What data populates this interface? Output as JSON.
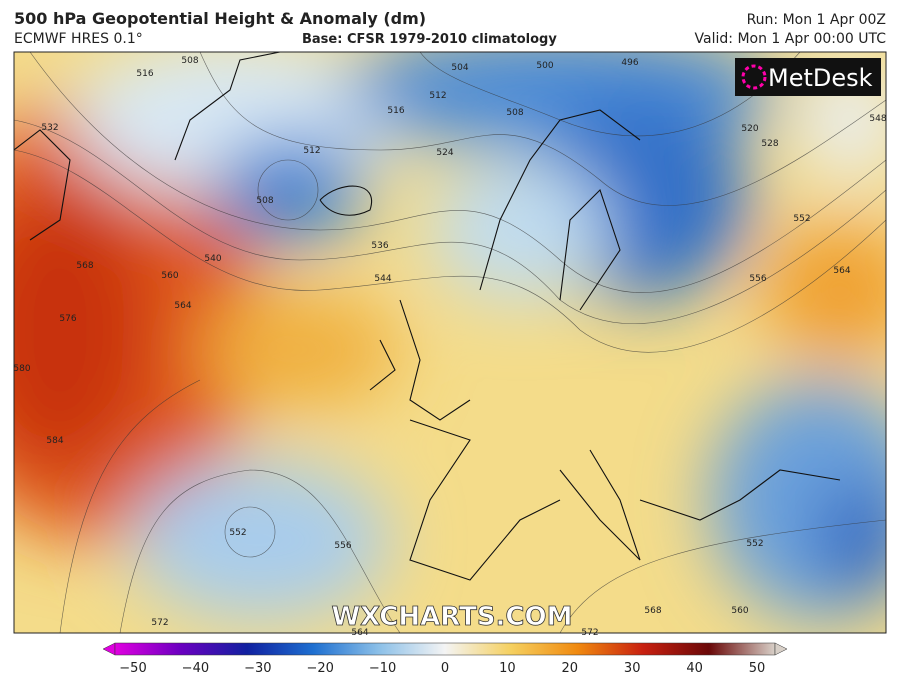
{
  "header": {
    "title": "500 hPa Geopotential Height & Anomaly (dm)",
    "model": "ECMWF HRES 0.1°",
    "base": "Base: CFSR 1979-2010 climatology",
    "run": "Run: Mon 1 Apr 00Z",
    "valid": "Valid: Mon 1 Apr 00:00 UTC"
  },
  "map": {
    "logo": "MetDesk",
    "watermark": "WXCHARTS.COM",
    "contour_labels": [
      "516",
      "508",
      "532",
      "512",
      "504",
      "500",
      "496",
      "516",
      "508",
      "524",
      "512",
      "508",
      "520",
      "528",
      "548",
      "536",
      "540",
      "544",
      "552",
      "556",
      "564",
      "568",
      "560",
      "564",
      "576",
      "580",
      "584",
      "552",
      "556",
      "552",
      "568",
      "560",
      "572",
      "564",
      "572"
    ]
  },
  "colorbar": {
    "ticks": [
      "−50",
      "−40",
      "−30",
      "−20",
      "−10",
      "0",
      "10",
      "20",
      "30",
      "40",
      "50"
    ]
  }
}
